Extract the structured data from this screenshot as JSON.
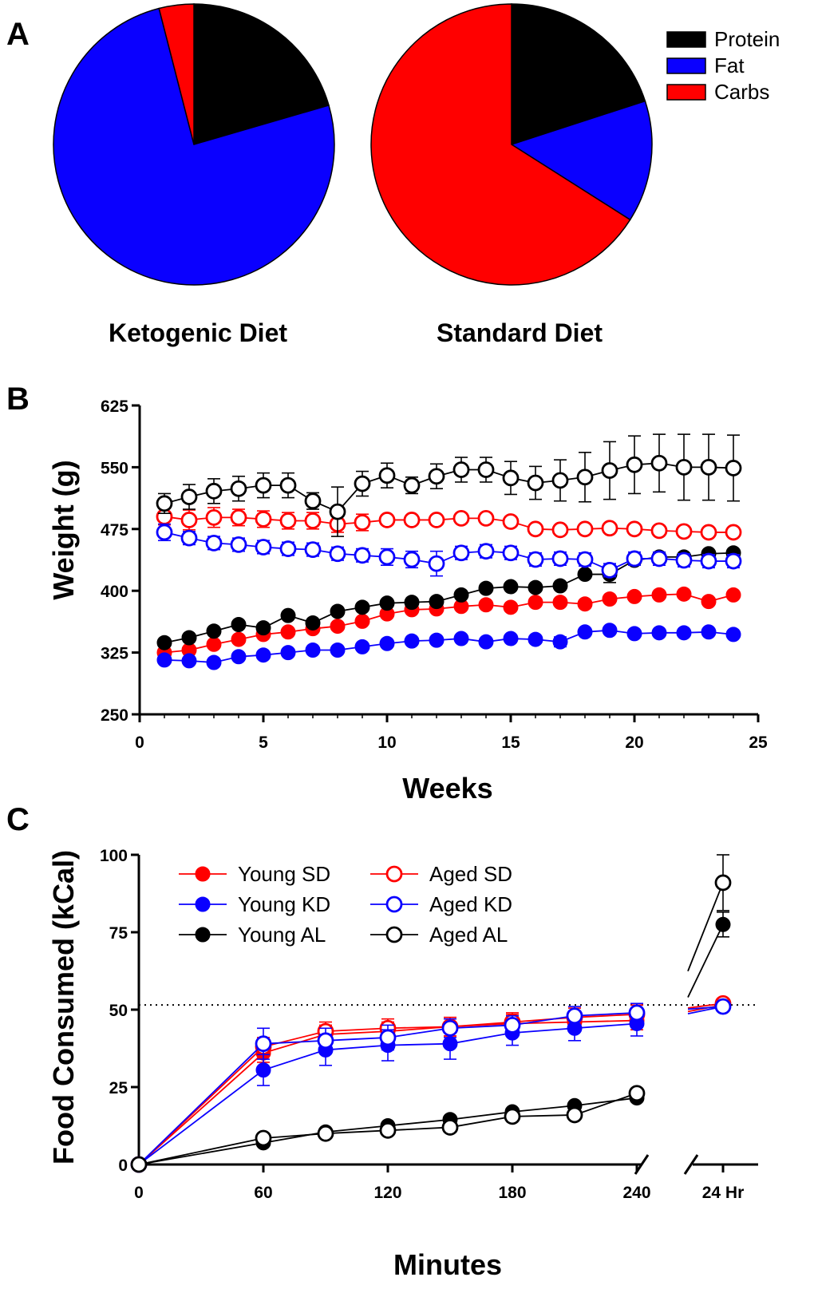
{
  "colors": {
    "protein": "#000000",
    "fat": "#0a00ff",
    "carbs": "#ff0000",
    "axis": "#000000"
  },
  "panel_labels": {
    "a": "A",
    "b": "B",
    "c": "C"
  },
  "legend_a": [
    {
      "label": "Protein",
      "color": "#000000"
    },
    {
      "label": "Fat",
      "color": "#0a00ff"
    },
    {
      "label": "Carbs",
      "color": "#ff0000"
    }
  ],
  "legend_c": [
    {
      "label": "Young SD",
      "color": "#ff0000",
      "filled": true
    },
    {
      "label": "Aged SD",
      "color": "#ff0000",
      "filled": false
    },
    {
      "label": "Young KD",
      "color": "#0a00ff",
      "filled": true
    },
    {
      "label": "Aged KD",
      "color": "#0a00ff",
      "filled": false
    },
    {
      "label": "Young AL",
      "color": "#000000",
      "filled": true
    },
    {
      "label": "Aged AL",
      "color": "#000000",
      "filled": false
    }
  ],
  "chart_data": [
    {
      "type": "pie",
      "title": "Ketogenic Diet",
      "slices": [
        {
          "label": "Protein",
          "value": 20.5
        },
        {
          "label": "Fat",
          "value": 75.5
        },
        {
          "label": "Carbs",
          "value": 4.0
        }
      ]
    },
    {
      "type": "pie",
      "title": "Standard Diet",
      "slices": [
        {
          "label": "Protein",
          "value": 20.0
        },
        {
          "label": "Fat",
          "value": 14.0
        },
        {
          "label": "Carbs",
          "value": 66.0
        }
      ]
    },
    {
      "type": "scatter",
      "xlabel": "Weeks",
      "ylabel": "Weight (g)",
      "xlim": [
        0,
        25
      ],
      "ylim": [
        250,
        625
      ],
      "xticks": [
        0,
        5,
        10,
        15,
        20,
        25
      ],
      "yticks": [
        250,
        325,
        400,
        475,
        550,
        625
      ],
      "x": [
        1,
        2,
        3,
        4,
        5,
        6,
        7,
        8,
        9,
        10,
        11,
        12,
        13,
        14,
        15,
        16,
        17,
        18,
        19,
        20,
        21,
        22,
        23,
        24
      ],
      "series": [
        {
          "name": "Young SD",
          "color": "#ff0000",
          "filled": true,
          "values": [
            325,
            328,
            335,
            341,
            347,
            350,
            354,
            357,
            363,
            372,
            377,
            378,
            381,
            383,
            380,
            386,
            386,
            384,
            390,
            393,
            395,
            396,
            387,
            395
          ],
          "errors": [
            0,
            0,
            0,
            0,
            0,
            0,
            0,
            0,
            0,
            0,
            0,
            0,
            0,
            0,
            0,
            0,
            0,
            0,
            0,
            0,
            0,
            0,
            0,
            0
          ]
        },
        {
          "name": "Young KD",
          "color": "#0a00ff",
          "filled": true,
          "values": [
            316,
            315,
            313,
            320,
            322,
            325,
            328,
            328,
            332,
            336,
            339,
            340,
            342,
            338,
            342,
            341,
            338,
            350,
            352,
            348,
            349,
            349,
            350,
            347
          ],
          "errors": [
            0,
            0,
            0,
            0,
            0,
            0,
            0,
            0,
            0,
            0,
            0,
            0,
            0,
            0,
            0,
            0,
            6,
            0,
            0,
            0,
            0,
            0,
            0,
            0
          ]
        },
        {
          "name": "Young AL",
          "color": "#000000",
          "filled": true,
          "values": [
            337,
            343,
            351,
            359,
            355,
            370,
            361,
            375,
            380,
            385,
            386,
            387,
            395,
            403,
            405,
            404,
            406,
            420,
            420,
            437,
            441,
            441,
            445,
            446
          ],
          "errors": [
            0,
            0,
            0,
            0,
            0,
            0,
            0,
            0,
            0,
            0,
            0,
            0,
            0,
            0,
            0,
            0,
            0,
            0,
            10,
            0,
            0,
            0,
            0,
            0
          ]
        },
        {
          "name": "Aged SD",
          "color": "#ff0000",
          "filled": false,
          "values": [
            490,
            486,
            489,
            489,
            487,
            485,
            485,
            481,
            483,
            486,
            486,
            486,
            488,
            488,
            484,
            475,
            474,
            475,
            476,
            475,
            473,
            472,
            471,
            471
          ],
          "errors": [
            10,
            12,
            12,
            10,
            10,
            10,
            10,
            10,
            10,
            5,
            5,
            5,
            5,
            5,
            5,
            5,
            5,
            5,
            5,
            5,
            5,
            5,
            5,
            5
          ]
        },
        {
          "name": "Aged KD",
          "color": "#0a00ff",
          "filled": false,
          "values": [
            471,
            464,
            458,
            456,
            453,
            451,
            450,
            445,
            443,
            441,
            438,
            433,
            446,
            448,
            446,
            438,
            439,
            438,
            425,
            439,
            439,
            437,
            436,
            436
          ],
          "errors": [
            10,
            8,
            8,
            8,
            8,
            8,
            8,
            8,
            8,
            10,
            10,
            15,
            8,
            8,
            8,
            8,
            8,
            8,
            8,
            8,
            8,
            8,
            8,
            8
          ]
        },
        {
          "name": "Aged AL",
          "color": "#000000",
          "filled": false,
          "values": [
            506,
            514,
            521,
            524,
            528,
            528,
            509,
            496,
            530,
            540,
            528,
            539,
            547,
            547,
            537,
            531,
            534,
            538,
            546,
            553,
            555,
            550,
            550,
            549
          ],
          "errors": [
            12,
            15,
            15,
            15,
            15,
            15,
            10,
            30,
            15,
            15,
            10,
            15,
            15,
            15,
            20,
            20,
            25,
            30,
            35,
            35,
            35,
            40,
            40,
            40
          ]
        }
      ]
    },
    {
      "type": "line",
      "xlabel": "Minutes",
      "ylabel": "Food Consumed (kCal)",
      "xlim": [
        0,
        240
      ],
      "ylim": [
        0,
        100
      ],
      "xticks": [
        0,
        60,
        120,
        180,
        240
      ],
      "yticks": [
        0,
        25,
        50,
        75,
        100
      ],
      "extra_xtick": "24 Hr",
      "reference_line": 51.5,
      "x": [
        0,
        60,
        90,
        120,
        150,
        180,
        210,
        240
      ],
      "series": [
        {
          "name": "Young SD",
          "color": "#ff0000",
          "filled": true,
          "values": [
            0,
            36,
            42,
            43,
            44.5,
            45.5,
            46,
            46.5
          ],
          "errors": [
            0,
            3,
            3,
            3,
            3,
            3,
            3,
            3
          ],
          "value_24h": 51.5,
          "error_24h": 0
        },
        {
          "name": "Aged SD",
          "color": "#ff0000",
          "filled": false,
          "values": [
            0,
            38,
            43,
            44,
            44.5,
            46,
            47.5,
            48.5
          ],
          "errors": [
            0,
            3,
            3,
            3,
            3,
            3,
            3,
            3
          ],
          "value_24h": 52,
          "error_24h": 0
        },
        {
          "name": "Young KD",
          "color": "#0a00ff",
          "filled": true,
          "values": [
            0,
            30.5,
            37,
            38.5,
            39,
            42.5,
            44,
            45.5
          ],
          "errors": [
            0,
            5,
            5,
            5,
            5,
            4,
            4,
            4
          ],
          "value_24h": 51,
          "error_24h": 0
        },
        {
          "name": "Aged KD",
          "color": "#0a00ff",
          "filled": false,
          "values": [
            0,
            39,
            40,
            41,
            44,
            45,
            48,
            49
          ],
          "errors": [
            0,
            5,
            4,
            4,
            3,
            3,
            3,
            3
          ],
          "value_24h": 51,
          "error_24h": 0
        },
        {
          "name": "Young AL",
          "color": "#000000",
          "filled": true,
          "values": [
            0,
            7,
            10.5,
            12.5,
            14.5,
            17,
            19,
            21.5
          ],
          "errors": [
            0,
            0,
            0,
            0,
            0,
            0,
            0,
            0
          ],
          "value_24h": 77.5,
          "error_24h": 4
        },
        {
          "name": "Aged AL",
          "color": "#000000",
          "filled": false,
          "values": [
            0,
            8.5,
            10,
            11,
            12,
            15.5,
            16,
            23
          ],
          "errors": [
            0,
            0,
            0,
            0,
            0,
            0,
            0,
            0
          ],
          "value_24h": 91,
          "error_24h": 9
        }
      ]
    }
  ]
}
